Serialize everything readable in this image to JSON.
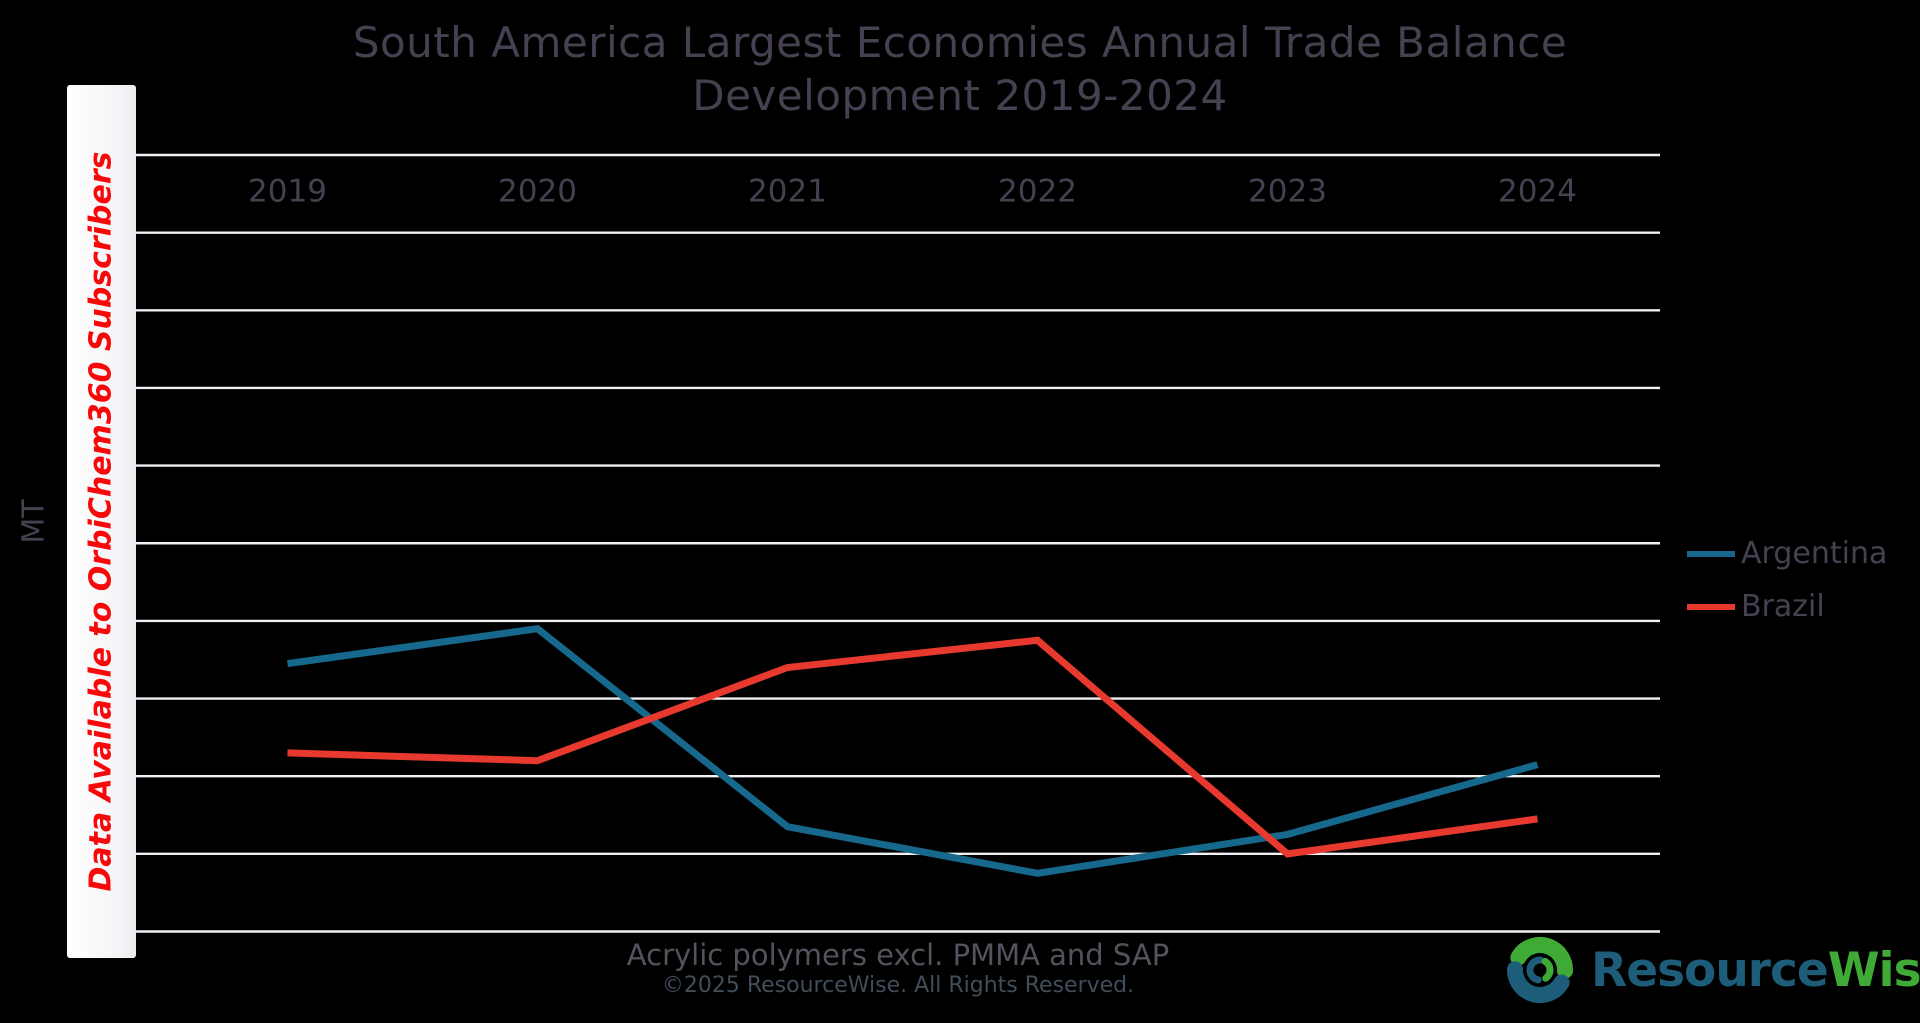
{
  "title": {
    "line1": "South America Largest Economies Annual Trade Balance",
    "line2": "Development 2019-2024"
  },
  "watermark": {
    "text": "Data Available to OrbiChem360 Subscribers",
    "color": "#f70909"
  },
  "y_axis": {
    "label": "MT"
  },
  "legend": [
    {
      "label": "Argentina",
      "color": "#16688c"
    },
    {
      "label": "Brazil",
      "color": "#e8392f"
    }
  ],
  "footer": {
    "subtitle": "Acrylic polymers excl. PMMA and SAP",
    "copyright": "©2025 ResourceWise. All Rights Reserved."
  },
  "logo": {
    "part1": "Resource",
    "part2": "Wise",
    "registered": "®",
    "color1": "#1d5d79",
    "color2": "#3faa35"
  },
  "colors": {
    "background": "#000000",
    "gridline": "#f1f1f4",
    "heading_text": "#474051"
  },
  "chart_data": {
    "type": "line",
    "title": "South America Largest Economies Annual Trade Balance Development 2019-2024",
    "subtitle": "Acrylic polymers excl. PMMA and SAP",
    "xlabel": "",
    "ylabel": "MT",
    "x": [
      "2019",
      "2020",
      "2021",
      "2022",
      "2023",
      "2024"
    ],
    "series": [
      {
        "name": "Argentina",
        "color": "#16688c",
        "values": [
          3.45,
          3.9,
          1.35,
          0.75,
          1.25,
          2.15
        ]
      },
      {
        "name": "Brazil",
        "color": "#e8392f",
        "values": [
          2.3,
          2.2,
          3.4,
          3.75,
          1.0,
          1.45
        ]
      }
    ],
    "value_units_note": "Y-axis tick values are not shown (data available to OrbiChem360 subscribers); series values are relative grid units, 1 unit = 1 horizontal gridline spacing above the bottom gridline",
    "ylim": [
      0,
      10
    ],
    "gridline_count": 11,
    "grid": true,
    "legend_position": "right"
  }
}
